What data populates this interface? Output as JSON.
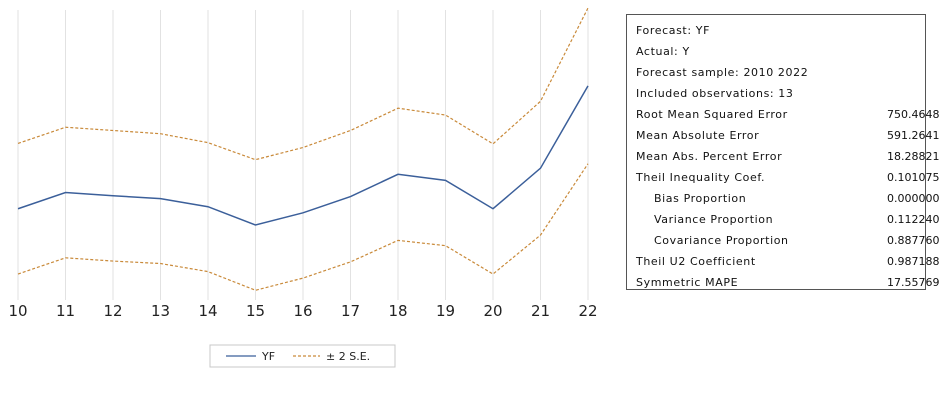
{
  "chart_data": {
    "type": "line",
    "categories": [
      "10",
      "11",
      "12",
      "13",
      "14",
      "15",
      "16",
      "17",
      "18",
      "19",
      "20",
      "21",
      "22"
    ],
    "series": [
      {
        "name": "YF",
        "values": [
          2250,
          2650,
          2570,
          2500,
          2300,
          1850,
          2150,
          2550,
          3100,
          2950,
          2250,
          3250,
          5280
        ],
        "color": "#3b5f9a",
        "style": "solid"
      },
      {
        "name": "± 2 S.E.",
        "values": [
          3860,
          4260,
          4180,
          4100,
          3880,
          3460,
          3760,
          4180,
          4730,
          4560,
          3850,
          4900,
          7200
        ],
        "color": "#c98a3a",
        "style": "dashed"
      },
      {
        "name": "± 2 S.E.",
        "values": [
          640,
          1040,
          960,
          900,
          700,
          240,
          540,
          940,
          1470,
          1340,
          640,
          1600,
          3360
        ],
        "color": "#c98a3a",
        "style": "dashed",
        "legend": false
      }
    ],
    "ylim": [
      0,
      7200
    ],
    "grid": "vertical",
    "legend": {
      "placement": "bottom",
      "items": [
        {
          "label": "YF",
          "color": "#3b5f9a",
          "style": "solid"
        },
        {
          "label": "± 2 S.E.",
          "color": "#c98a3a",
          "style": "dashed"
        }
      ]
    },
    "title": "",
    "xlabel": "",
    "ylabel": ""
  },
  "stats": {
    "header": [
      "Forecast: YF",
      "Actual: Y",
      "Forecast sample: 2010 2022",
      "Included observations: 13"
    ],
    "rows": [
      {
        "label": "Root Mean Squared Error",
        "value": "750.4648",
        "indent": 0
      },
      {
        "label": "Mean Absolute Error",
        "value": "591.2641",
        "indent": 0
      },
      {
        "label": "Mean Abs. Percent Error",
        "value": "18.28821",
        "indent": 0
      },
      {
        "label": "Theil Inequality Coef.",
        "value": "0.101075",
        "indent": 0
      },
      {
        "label": "Bias Proportion",
        "value": "0.000000",
        "indent": 1
      },
      {
        "label": "Variance Proportion",
        "value": "0.112240",
        "indent": 1
      },
      {
        "label": "Covariance Proportion",
        "value": "0.887760",
        "indent": 1
      },
      {
        "label": "Theil U2 Coefficient",
        "value": "0.987188",
        "indent": 0
      },
      {
        "label": "Symmetric MAPE",
        "value": "17.55769",
        "indent": 0
      }
    ]
  }
}
